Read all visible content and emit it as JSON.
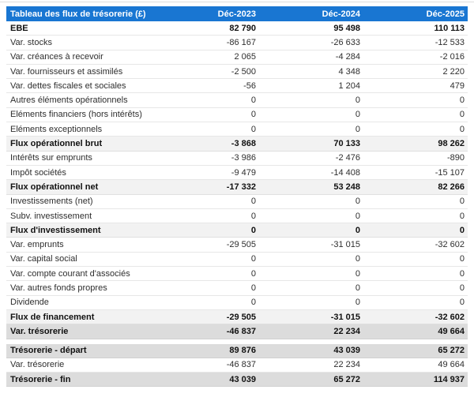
{
  "colors": {
    "header_background": "#1976d2",
    "header_text": "#ffffff",
    "subtotal_row_background": "#f2f2f2",
    "total_row_background": "#dcdcdc",
    "row_border": "#e7e7e7",
    "body_text": "#2e2e2e"
  },
  "table": {
    "title": "Tableau des flux de trésorerie (£)",
    "columns": [
      "Déc-2023",
      "Déc-2024",
      "Déc-2025"
    ],
    "rows": [
      {
        "label": "EBE",
        "values": [
          "82 790",
          "95 498",
          "110 113"
        ]
      },
      {
        "label": "Var. stocks",
        "values": [
          "-86 167",
          "-26 633",
          "-12 533"
        ]
      },
      {
        "label": "Var. créances à recevoir",
        "values": [
          "2 065",
          "-4 284",
          "-2 016"
        ]
      },
      {
        "label": "Var. fournisseurs et assimilés",
        "values": [
          "-2 500",
          "4 348",
          "2 220"
        ]
      },
      {
        "label": "Var. dettes fiscales et sociales",
        "values": [
          "-56",
          "1 204",
          "479"
        ]
      },
      {
        "label": "Autres éléments opérationnels",
        "values": [
          "0",
          "0",
          "0"
        ]
      },
      {
        "label": "Eléments financiers (hors intérêts)",
        "values": [
          "0",
          "0",
          "0"
        ]
      },
      {
        "label": "Eléments exceptionnels",
        "values": [
          "0",
          "0",
          "0"
        ]
      },
      {
        "label": "Flux opérationnel brut",
        "values": [
          "-3 868",
          "70 133",
          "98 262"
        ]
      },
      {
        "label": "Intérêts sur emprunts",
        "values": [
          "-3 986",
          "-2 476",
          "-890"
        ]
      },
      {
        "label": "Impôt sociétés",
        "values": [
          "-9 479",
          "-14 408",
          "-15 107"
        ]
      },
      {
        "label": "Flux opérationnel net",
        "values": [
          "-17 332",
          "53 248",
          "82 266"
        ]
      },
      {
        "label": "Investissements (net)",
        "values": [
          "0",
          "0",
          "0"
        ]
      },
      {
        "label": "Subv. investissement",
        "values": [
          "0",
          "0",
          "0"
        ]
      },
      {
        "label": "Flux d'investissement",
        "values": [
          "0",
          "0",
          "0"
        ]
      },
      {
        "label": "Var. emprunts",
        "values": [
          "-29 505",
          "-31 015",
          "-32 602"
        ]
      },
      {
        "label": "Var. capital social",
        "values": [
          "0",
          "0",
          "0"
        ]
      },
      {
        "label": "Var. compte courant d'associés",
        "values": [
          "0",
          "0",
          "0"
        ]
      },
      {
        "label": "Var. autres fonds propres",
        "values": [
          "0",
          "0",
          "0"
        ]
      },
      {
        "label": "Dividende",
        "values": [
          "0",
          "0",
          "0"
        ]
      },
      {
        "label": "Flux de financement",
        "values": [
          "-29 505",
          "-31 015",
          "-32 602"
        ]
      },
      {
        "label": "Var. trésorerie",
        "values": [
          "-46 837",
          "22 234",
          "49 664"
        ]
      },
      {
        "label": "Trésorerie - départ",
        "values": [
          "89 876",
          "43 039",
          "65 272"
        ]
      },
      {
        "label": "Var. trésorerie",
        "values": [
          "-46 837",
          "22 234",
          "49 664"
        ]
      },
      {
        "label": "Trésorerie - fin",
        "values": [
          "43 039",
          "65 272",
          "114 937"
        ]
      }
    ]
  },
  "chart_data": {
    "type": "table",
    "title": "Tableau des flux de trésorerie (£)",
    "columns": [
      "Déc-2023",
      "Déc-2024",
      "Déc-2025"
    ],
    "rows": [
      {
        "label": "EBE",
        "values": [
          82790,
          95498,
          110113
        ]
      },
      {
        "label": "Var. stocks",
        "values": [
          -86167,
          -26633,
          -12533
        ]
      },
      {
        "label": "Var. créances à recevoir",
        "values": [
          2065,
          -4284,
          -2016
        ]
      },
      {
        "label": "Var. fournisseurs et assimilés",
        "values": [
          -2500,
          4348,
          2220
        ]
      },
      {
        "label": "Var. dettes fiscales et sociales",
        "values": [
          -56,
          1204,
          479
        ]
      },
      {
        "label": "Autres éléments opérationnels",
        "values": [
          0,
          0,
          0
        ]
      },
      {
        "label": "Eléments financiers (hors intérêts)",
        "values": [
          0,
          0,
          0
        ]
      },
      {
        "label": "Eléments exceptionnels",
        "values": [
          0,
          0,
          0
        ]
      },
      {
        "label": "Flux opérationnel brut",
        "values": [
          -3868,
          70133,
          98262
        ]
      },
      {
        "label": "Intérêts sur emprunts",
        "values": [
          -3986,
          -2476,
          -890
        ]
      },
      {
        "label": "Impôt sociétés",
        "values": [
          -9479,
          -14408,
          -15107
        ]
      },
      {
        "label": "Flux opérationnel net",
        "values": [
          -17332,
          53248,
          82266
        ]
      },
      {
        "label": "Investissements (net)",
        "values": [
          0,
          0,
          0
        ]
      },
      {
        "label": "Subv. investissement",
        "values": [
          0,
          0,
          0
        ]
      },
      {
        "label": "Flux d'investissement",
        "values": [
          0,
          0,
          0
        ]
      },
      {
        "label": "Var. emprunts",
        "values": [
          -29505,
          -31015,
          -32602
        ]
      },
      {
        "label": "Var. capital social",
        "values": [
          0,
          0,
          0
        ]
      },
      {
        "label": "Var. compte courant d'associés",
        "values": [
          0,
          0,
          0
        ]
      },
      {
        "label": "Var. autres fonds propres",
        "values": [
          0,
          0,
          0
        ]
      },
      {
        "label": "Dividende",
        "values": [
          0,
          0,
          0
        ]
      },
      {
        "label": "Flux de financement",
        "values": [
          -29505,
          -31015,
          -32602
        ]
      },
      {
        "label": "Var. trésorerie",
        "values": [
          -46837,
          22234,
          49664
        ]
      },
      {
        "label": "Trésorerie - départ",
        "values": [
          89876,
          43039,
          65272
        ]
      },
      {
        "label": "Var. trésorerie",
        "values": [
          -46837,
          22234,
          49664
        ]
      },
      {
        "label": "Trésorerie - fin",
        "values": [
          43039,
          65272,
          114937
        ]
      }
    ]
  }
}
